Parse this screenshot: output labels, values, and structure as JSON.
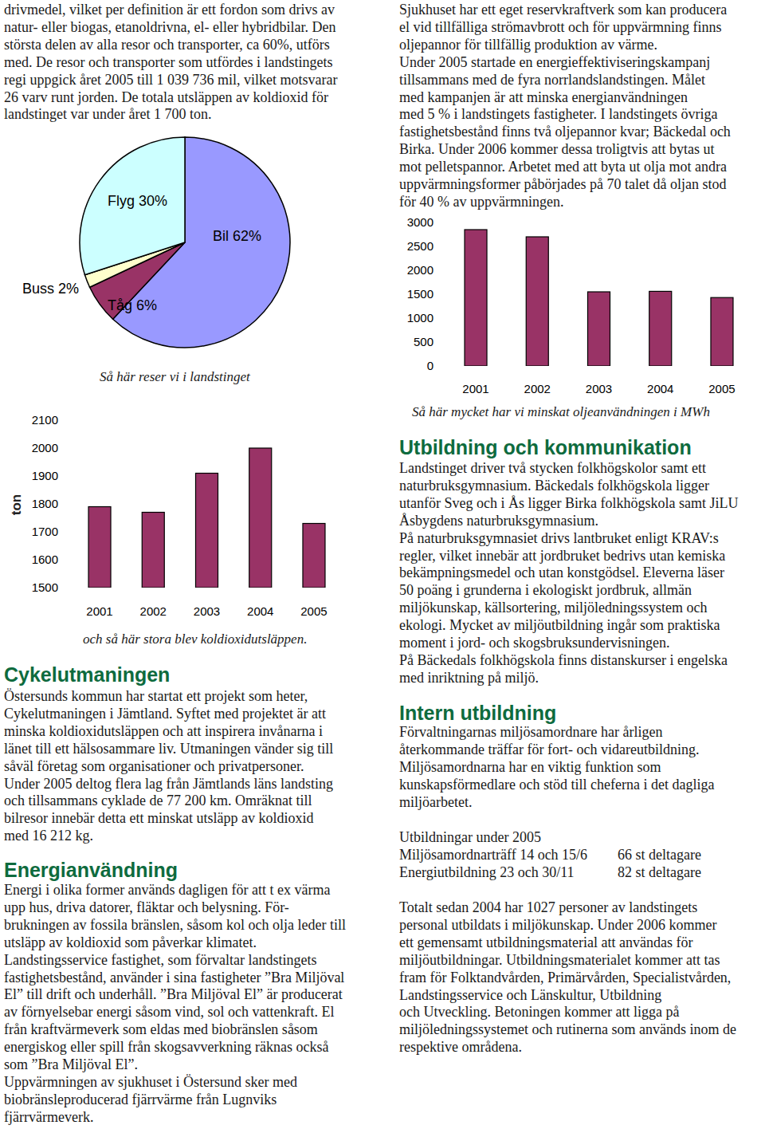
{
  "chart_data": [
    {
      "type": "pie",
      "caption": "Så här reser vi i landstinget",
      "categories": [
        "Bil",
        "Tåg",
        "Buss",
        "Flyg"
      ],
      "values": [
        62,
        6,
        2,
        30
      ],
      "value_labels": [
        "62%",
        "6%",
        "2%",
        "30%"
      ],
      "colors": [
        "#9999ff",
        "#993366",
        "#ffffcc",
        "#ccffff"
      ],
      "data_labels": true
    },
    {
      "type": "bar",
      "caption": "och så här stora blev koldioxidutsläppen.",
      "y_label": "ton",
      "categories": [
        "2001",
        "2002",
        "2003",
        "2004",
        "2005"
      ],
      "values": [
        1790,
        1770,
        1910,
        2000,
        1730
      ],
      "color": "#993366",
      "ylim": [
        1500,
        2100
      ],
      "yticks": [
        1500,
        1600,
        1700,
        1800,
        1900,
        2000,
        2100
      ]
    },
    {
      "type": "bar",
      "caption": "Så här mycket har vi minskat oljeanvändningen i MWh",
      "categories": [
        "2001",
        "2002",
        "2003",
        "2004",
        "2005"
      ],
      "values": [
        2850,
        2700,
        1550,
        1560,
        1430
      ],
      "color": "#993366",
      "ylim": [
        0,
        3000
      ],
      "yticks": [
        0,
        500,
        1000,
        1500,
        2000,
        2500,
        3000
      ]
    }
  ],
  "document": {
    "sections": [
      {
        "lines": [
          "drivmedel, vilket per definition är ett fordon som drivs av",
          "natur- eller biogas, etanoldrivna, el- eller hybridbilar. Den",
          "största delen av alla resor och transporter, ca 60%, utförs",
          "med. De resor och transporter som utfördes i landstingets",
          "regi uppgick året 2005 till 1 039 736 mil, vilket motsvarar",
          "26 varv runt jorden. De totala utsläppen av koldioxid för",
          "landstinget var under året 1 700 ton."
        ]
      },
      {
        "heading": "Cykelutmaningen",
        "lines": [
          "Östersunds kommun har startat ett projekt som heter,",
          "Cykelutmaningen i Jämtland. Syftet med projektet är att",
          "minska koldioxidutsläppen och att inspirera invånarna i",
          "länet till ett hälsosammare liv. Utmaningen vänder sig till",
          "såväl företag som organisationer och privatpersoner.",
          "Under 2005 deltog flera lag från Jämtlands läns landsting",
          "och tillsammans cyklade de 77 200 km. Omräknat till",
          "bilresor innebär detta ett minskat utsläpp av koldioxid",
          "med 16 212 kg."
        ]
      },
      {
        "heading": "Energianvändning",
        "lines": [
          "Energi i olika former används dagligen för att t ex värma",
          "upp hus, driva datorer, fläktar och belysning. För-",
          "brukningen av fossila bränslen, såsom kol och olja leder till",
          "utsläpp av koldioxid som påverkar klimatet.",
          "Landstingsservice fastighet, som förvaltar landstingets",
          "fastighetsbestånd, använder i sina fastigheter ”Bra Miljöval",
          "El” till drift och underhåll. ”Bra Miljöval El” är producerat",
          "av förnyelsebar energi såsom vind, sol och vattenkraft. El",
          "från kraftvärmeverk som eldas med biobränslen såsom",
          "energiskog eller spill från skogsavverkning räknas också",
          "som ”Bra Miljöval El”.",
          "Uppvärmningen av sjukhuset i Östersund sker med",
          "biobränsleproducerad fjärrvärme från Lugnviks",
          "fjärrvärmeverk."
        ]
      },
      {
        "lines": [
          "Sjukhuset har ett eget reservkraftverk som kan producera",
          "el vid tillfälliga strömavbrott och för uppvärmning finns",
          "oljepannor för tillfällig produktion av värme.",
          "Under 2005 startade en energieffektiviseringskampanj",
          "tillsammans med de fyra norrlandslandstingen. Målet",
          "med kampanjen är att minska energianvändningen",
          "med 5 % i landstingets fastigheter. I landstingets övriga",
          "fastighetsbestånd finns två oljepannor kvar; Bäckedal och",
          "Birka. Under 2006 kommer dessa troligtvis att bytas ut",
          "mot pelletspannor. Arbetet med att byta ut olja mot andra",
          "uppvärmningsformer påbörjades på 70 talet då oljan stod",
          "för 40 % av uppvärmningen."
        ]
      },
      {
        "heading": "Utbildning och kommunikation",
        "lines": [
          "Landstinget driver två stycken folkhögskolor samt ett",
          "naturbruksgymnasium. Bäckedals folkhögskola ligger",
          "utanför Sveg och i Ås ligger Birka folkhögskola samt JiLU",
          "Åsbygdens naturbruksgymnasium.",
          "På naturbruksgymnasiet drivs lantbruket enligt KRAV:s",
          "regler, vilket innebär att jordbruket bedrivs utan kemiska",
          "bekämpningsmedel och utan konstgödsel. Eleverna läser",
          "50 poäng i grunderna i ekologiskt jordbruk, allmän",
          "miljökunskap, källsortering, miljöledningssystem och",
          "ekologi. Mycket av miljöutbildning ingår som praktiska",
          "moment i jord- och skogsbruksundervisningen.",
          "På Bäckedals folkhögskola finns distanskurser i engelska",
          "med inriktning på miljö."
        ]
      },
      {
        "heading": "Intern utbildning",
        "lines": [
          "Förvaltningarnas miljösamordnare har årligen",
          "återkommande träffar för fort- och vidareutbildning.",
          "Miljösamordnarna har en viktig funktion som",
          "kunskapsförmedlare och stöd till cheferna i det dagliga",
          "miljöarbetet."
        ],
        "table_title": "Utbildningar under 2005",
        "table": [
          [
            "Miljösamordnarträff 14 och 15/6",
            "66 st deltagare"
          ],
          [
            "Energiutbildning 23 och 30/11",
            "82 st deltagare"
          ]
        ],
        "closing_lines": [
          "Totalt sedan 2004 har 1027 personer av landstingets",
          "personal utbildats i miljökunskap. Under 2006 kommer",
          "ett gemensamt utbildningsmaterial att användas för",
          "miljöutbildningar. Utbildningsmaterialet kommer att tas",
          "fram för Folktandvården, Primärvården, Specialistvården,",
          "Landstingsservice och Länskultur, Utbildning",
          "och Utveckling. Betoningen kommer att ligga på",
          "miljöledningssystemet och rutinerna som används inom de",
          "respektive områdena."
        ]
      }
    ]
  }
}
